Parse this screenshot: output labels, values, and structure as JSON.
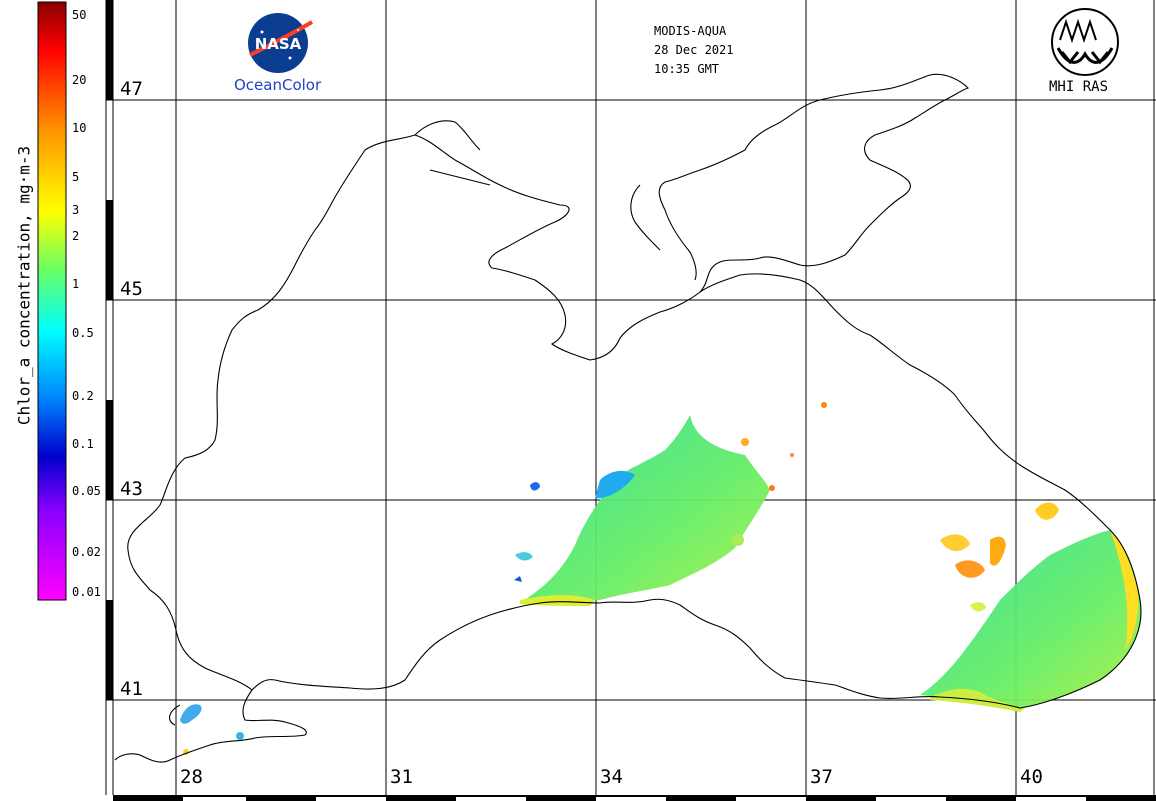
{
  "header": {
    "sensor": "MODIS-AQUA",
    "date": "28 Dec 2021",
    "time": "10:35 GMT"
  },
  "logos": {
    "nasa_caption": "OceanColor",
    "nasa_word": "NASA",
    "mhi_caption": "MHI RAS"
  },
  "colorbar": {
    "title": "Chlor_a concentration, mg·m-3",
    "ticks": [
      "50",
      "20",
      "10",
      "5",
      "3",
      "2",
      "1",
      "0.5",
      "0.2",
      "0.1",
      "0.05",
      "0.02",
      "0.01"
    ]
  },
  "latitude_labels": [
    "47",
    "45",
    "43",
    "41"
  ],
  "longitude_labels": [
    "28",
    "31",
    "34",
    "37",
    "40"
  ],
  "colors": {
    "background": "#ffffff",
    "coast": "#000000",
    "grid": "#000000",
    "nasa_blue": "#0b3d91",
    "nasa_red": "#fc3d21"
  }
}
